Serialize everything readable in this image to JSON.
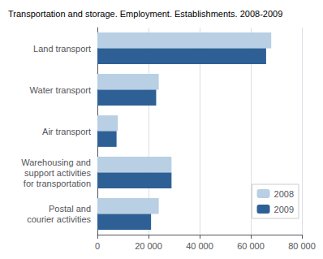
{
  "chart_data": {
    "type": "bar",
    "orientation": "horizontal",
    "title": "Transportation and storage. Employment. Establishments. 2008-2009",
    "categories": [
      "Land transport",
      "Water transport",
      "Air transport",
      "Warehousing and\nsupport activities\nfor transportation",
      "Postal and\ncourier activities"
    ],
    "series": [
      {
        "name": "2008",
        "color": "#b8cfe4",
        "values": [
          68000,
          24000,
          8000,
          29000,
          24000
        ]
      },
      {
        "name": "2009",
        "color": "#2e6096",
        "values": [
          66000,
          23000,
          7500,
          29000,
          21000
        ]
      }
    ],
    "xlim": [
      0,
      80000
    ],
    "xticks": [
      0,
      {
        "value": 20000,
        "label": "20 000"
      },
      {
        "value": 40000,
        "label": "40 000"
      },
      {
        "value": 60000,
        "label": "60 000"
      },
      {
        "value": 80000,
        "label": "80 000"
      }
    ],
    "grid": true,
    "legend": "lower right"
  }
}
